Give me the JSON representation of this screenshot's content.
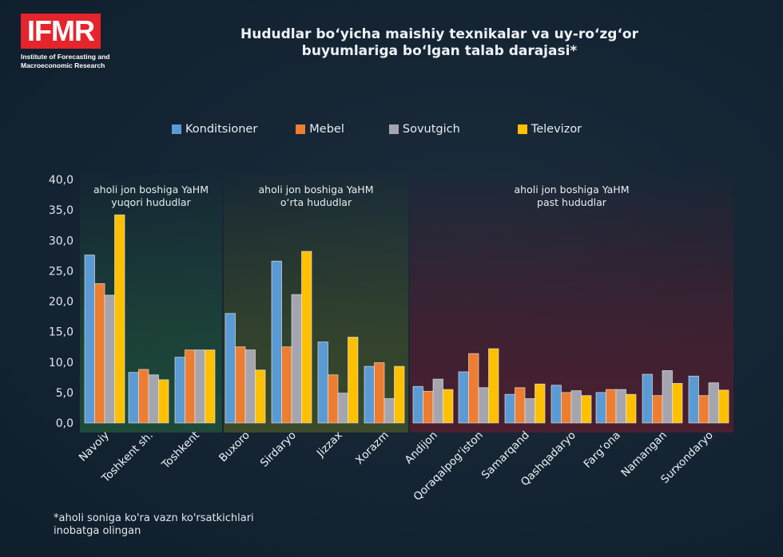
{
  "logo": {
    "text": "IFMR",
    "subtitle_line1": "Institute of Forecasting and",
    "subtitle_line2": "Macroeconomic Research"
  },
  "footnote": "*aholi soniga ko'ra vazn ko'rsatkichlari\ninobatga olingan",
  "chart_data": {
    "type": "bar",
    "title": "Hududlar bo‘yicha maishiy texnikalar va uy-ro‘zg‘or buyumlariga bo‘lgan talab darajasi*",
    "title_line1": "Hududlar bo‘yicha maishiy texnikalar va uy-ro‘zg‘or",
    "title_line2": "buyumlariga bo‘lgan talab darajasi*",
    "xlabel": "",
    "ylabel": "",
    "ylim": [
      0,
      40
    ],
    "yticks": [
      0,
      5,
      10,
      15,
      20,
      25,
      30,
      35,
      40
    ],
    "ytick_labels": [
      "0,0",
      "5,0",
      "10,0",
      "15,0",
      "20,0",
      "25,0",
      "30,0",
      "35,0",
      "40,0"
    ],
    "grid": false,
    "legend_position": "top",
    "categories": [
      "Navoiy",
      "Toshkent sh.",
      "Toshkent",
      "Buxoro",
      "Sirdaryo",
      "Jizzax",
      "Xorazm",
      "Andijon",
      "Qoraqalpog‘iston",
      "Samarqand",
      "Qashqadaryo",
      "Farg‘ona",
      "Namangan",
      "Surxondaryo"
    ],
    "series": [
      {
        "name": "Konditsioner",
        "color": "#5b9bd5",
        "values": [
          27.6,
          8.3,
          10.8,
          18.0,
          26.6,
          13.3,
          9.3,
          6.0,
          8.4,
          4.7,
          6.2,
          5.0,
          8.0,
          7.7
        ]
      },
      {
        "name": "Mebel",
        "color": "#ed7d31",
        "values": [
          22.9,
          8.8,
          12.0,
          12.5,
          12.5,
          7.9,
          9.9,
          5.2,
          11.4,
          5.8,
          5.0,
          5.5,
          4.5,
          4.5
        ]
      },
      {
        "name": "Sovutgich",
        "color": "#a5a5b0",
        "values": [
          21.0,
          7.9,
          12.0,
          12.0,
          21.1,
          4.9,
          4.0,
          7.2,
          5.8,
          4.0,
          5.3,
          5.5,
          8.6,
          6.6
        ]
      },
      {
        "name": "Televizor",
        "color": "#ffc000",
        "values": [
          34.2,
          7.1,
          12.0,
          8.7,
          28.2,
          14.1,
          9.3,
          5.5,
          12.2,
          6.4,
          4.5,
          4.7,
          6.5,
          5.4
        ]
      }
    ],
    "groups": [
      {
        "label_line1": "aholi jon boshiga YaHM",
        "label_line2": "yuqori hududlar",
        "start": 0,
        "end": 2,
        "color": "#1e4a3a"
      },
      {
        "label_line1": "aholi jon boshiga YaHM",
        "label_line2": "o‘rta hududlar",
        "start": 3,
        "end": 6,
        "color": "#3a4a2a"
      },
      {
        "label_line1": "aholi jon boshiga YaHM",
        "label_line2": "past hududlar",
        "start": 7,
        "end": 13,
        "color": "#4a1f30"
      }
    ]
  }
}
